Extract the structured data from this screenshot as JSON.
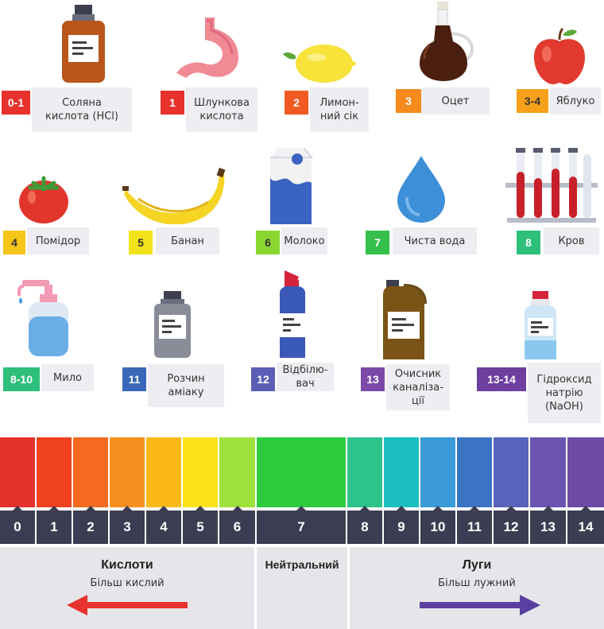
{
  "substances": [
    {
      "ph": "0-1",
      "name": "Соляна\nкислота (HCl)",
      "color": "#e8322e",
      "icon": "bottle-icon"
    },
    {
      "ph": "1",
      "name": "Шлункова\nкислота",
      "color": "#e8322e",
      "icon": "stomach-icon"
    },
    {
      "ph": "2",
      "name": "Лимон-\nний сік",
      "color": "#f05a22",
      "icon": "lemon-icon"
    },
    {
      "ph": "3",
      "name": "Оцет",
      "color": "#f58a1f",
      "icon": "vinegar-bottle-icon"
    },
    {
      "ph": "3-4",
      "name": "Яблуко",
      "color": "#f7a11a",
      "icon": "apple-icon"
    },
    {
      "ph": "4",
      "name": "Помідор",
      "color": "#f5c518",
      "icon": "tomato-icon"
    },
    {
      "ph": "5",
      "name": "Банан",
      "color": "#f2e21a",
      "icon": "banana-icon"
    },
    {
      "ph": "6",
      "name": "Молоко",
      "color": "#8ad630",
      "icon": "milk-carton-icon"
    },
    {
      "ph": "7",
      "name": "Чиста вода",
      "color": "#34c04a",
      "icon": "water-drop-icon"
    },
    {
      "ph": "8",
      "name": "Кров",
      "color": "#2ebf7a",
      "icon": "test-tubes-icon"
    },
    {
      "ph": "8-10",
      "name": "Мило",
      "color": "#2ebf7a",
      "icon": "soap-dispenser-icon"
    },
    {
      "ph": "11",
      "name": "Розчин\nаміаку",
      "color": "#3a68b8",
      "icon": "ammonia-bottle-icon"
    },
    {
      "ph": "12",
      "name": "Відбілю-\nвач",
      "color": "#5a5fb5",
      "icon": "bleach-bottle-icon"
    },
    {
      "ph": "13",
      "name": "Очисник\nканаліза-\nції",
      "color": "#7b4aa8",
      "icon": "cleaner-canister-icon"
    },
    {
      "ph": "13-14",
      "name": "Гідроксид\nнатрію\n(NaOH)",
      "color": "#6e3f9e",
      "icon": "naoh-bottle-icon"
    }
  ],
  "scale": {
    "numbers": [
      "0",
      "1",
      "2",
      "3",
      "4",
      "5",
      "6",
      "7",
      "8",
      "9",
      "10",
      "11",
      "12",
      "13",
      "14"
    ],
    "colors": [
      "#e4312b",
      "#f0421f",
      "#f56a21",
      "#f7901e",
      "#fbb917",
      "#fbe31b",
      "#9ee23b",
      "#2fcb3f",
      "#2dc38a",
      "#1cbfbf",
      "#3b9bd8",
      "#3c74c4",
      "#5a63bb",
      "#6a54b0",
      "#6d4aa5"
    ]
  },
  "bottom": {
    "acids_title": "Кислоти",
    "acids_sub": "Більш кислий",
    "neutral_title": "Нейтральний",
    "bases_title": "Луги",
    "bases_sub": "Більш лужний"
  },
  "colors": {
    "acid_arrow": "#e8322e",
    "base_arrow": "#5a3fa0",
    "number_bar": "#3c3d52"
  }
}
